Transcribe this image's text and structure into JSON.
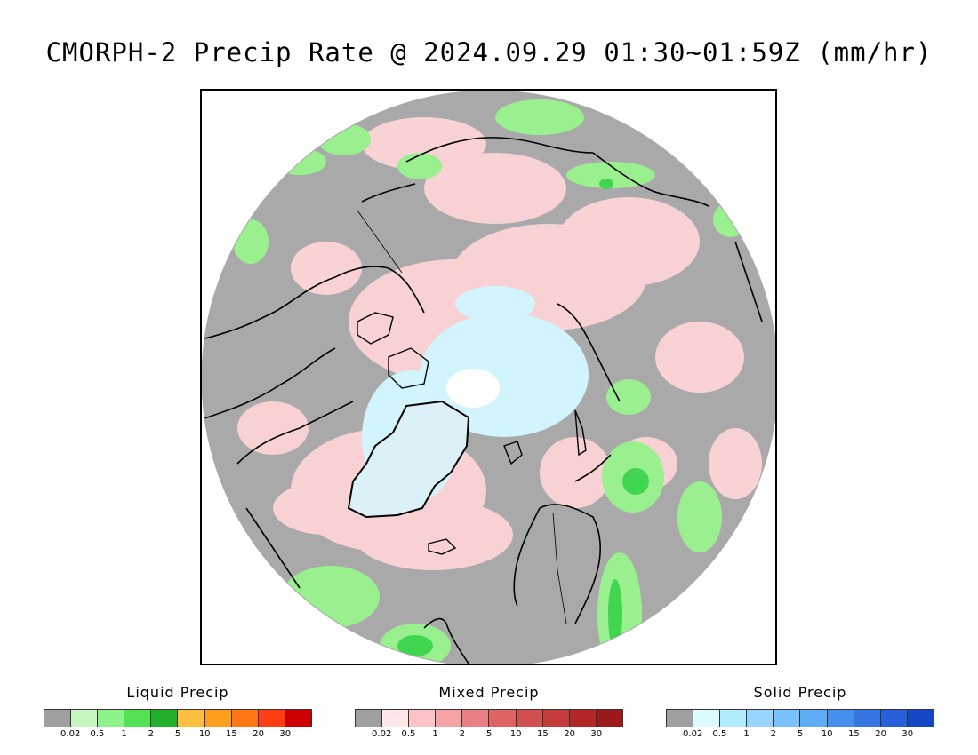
{
  "title": "CMORPH-2 Precip Rate @ 2024.09.29 01:30~01:59Z (mm/hr)",
  "map": {
    "projection": "north-polar-stereographic",
    "background_color": "#a9a9a9"
  },
  "legends": [
    {
      "title": "Liquid Precip",
      "colors": [
        "#a0a0a0",
        "#c6f7c0",
        "#8ef28a",
        "#52e253",
        "#22b12b",
        "#ffbf3e",
        "#ff9d1d",
        "#ff7715",
        "#ff3e14",
        "#cc0000"
      ],
      "ticks": [
        "0.02",
        "0.5",
        "1",
        "2",
        "5",
        "10",
        "15",
        "20",
        "30"
      ]
    },
    {
      "title": "Mixed Precip",
      "colors": [
        "#a0a0a0",
        "#ffe7ea",
        "#fcc4c8",
        "#f6a3a6",
        "#e98083",
        "#de6464",
        "#d35050",
        "#c53c3c",
        "#b22828",
        "#9c1a1a"
      ],
      "ticks": [
        "0.02",
        "0.5",
        "1",
        "2",
        "5",
        "10",
        "15",
        "20",
        "30"
      ]
    },
    {
      "title": "Solid Precip",
      "colors": [
        "#a0a0a0",
        "#ddfcff",
        "#b3ecff",
        "#97d4ff",
        "#79c1ff",
        "#5fadf6",
        "#468fea",
        "#3576e3",
        "#2660db",
        "#1547c4"
      ],
      "ticks": [
        "0.02",
        "0.5",
        "1",
        "2",
        "5",
        "10",
        "15",
        "20",
        "30"
      ]
    }
  ]
}
